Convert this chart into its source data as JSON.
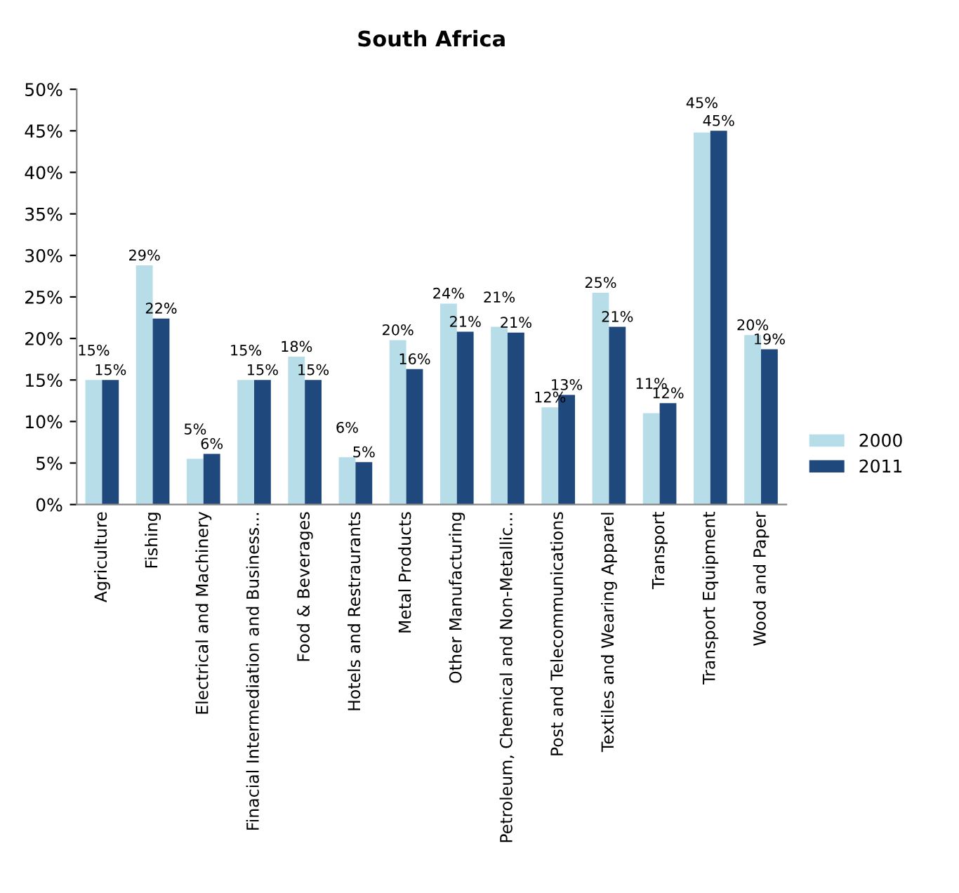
{
  "chart_data": {
    "type": "bar",
    "title": "South Africa",
    "categories": [
      "Agriculture",
      "Fishing",
      "Electrical and Machinery",
      "Finacial Intermediation and Business...",
      "Food & Beverages",
      "Hotels and Restraurants",
      "Metal Products",
      "Other Manufacturing",
      "Petroleum, Chemical and Non-Metallic...",
      "Post and Telecommunications",
      "Textiles and Wearing Apparel",
      "Transport",
      "Transport Equipment",
      "Wood and Paper"
    ],
    "series": [
      {
        "name": "2000",
        "color": "#b7dde8",
        "values": [
          15,
          28.8,
          5.5,
          15,
          17.8,
          5.7,
          19.8,
          24.2,
          21.4,
          11.7,
          25.5,
          11,
          44.8,
          20.4
        ],
        "value_labels": [
          "15%",
          "29%",
          "5%",
          "15%",
          "18%",
          "6%",
          "20%",
          "24%",
          "21%",
          "12%",
          "25%",
          "11%",
          "45%",
          "20%"
        ]
      },
      {
        "name": "2011",
        "color": "#1f497d",
        "values": [
          15,
          22.4,
          6.1,
          15,
          15,
          5.1,
          16.3,
          20.8,
          20.7,
          13.2,
          21.4,
          12.2,
          45,
          18.7
        ],
        "value_labels": [
          "15%",
          "22%",
          "6%",
          "15%",
          "15%",
          "5%",
          "16%",
          "21%",
          "21%",
          "13%",
          "21%",
          "12%",
          "45%",
          "19%"
        ]
      }
    ],
    "ylim": [
      0,
      50
    ],
    "yticks": [
      {
        "value": 0,
        "label": "0%"
      },
      {
        "value": 5,
        "label": "5%"
      },
      {
        "value": 10,
        "label": "10%"
      },
      {
        "value": 15,
        "label": "15%"
      },
      {
        "value": 20,
        "label": "20%"
      },
      {
        "value": 25,
        "label": "25%"
      },
      {
        "value": 30,
        "label": "30%"
      },
      {
        "value": 35,
        "label": "35%"
      },
      {
        "value": 40,
        "label": "40%"
      },
      {
        "value": 45,
        "label": "45%"
      },
      {
        "value": 50,
        "label": "50%"
      }
    ],
    "legend": "right"
  }
}
